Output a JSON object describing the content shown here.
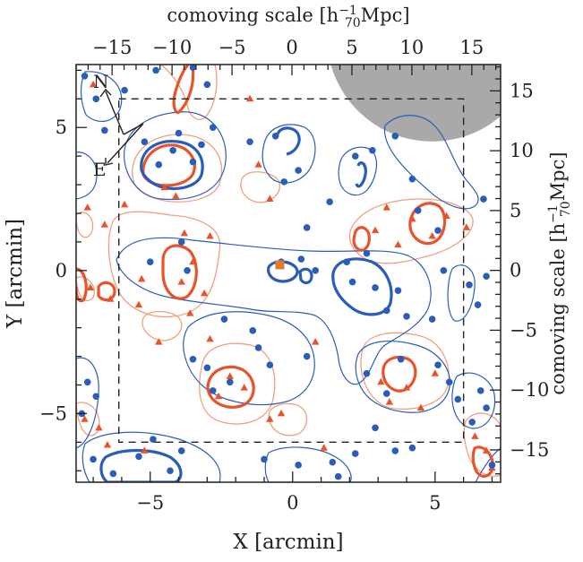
{
  "chart_data": {
    "type": "scatter",
    "title": "",
    "xlabel": "X [arcmin]",
    "ylabel": "Y [arcmin]",
    "x2label": "comoving scale [h",
    "y2label": "comoving scale [h",
    "unit_sub": "70",
    "unit_sup": "−1",
    "unit_tail": "Mpc]",
    "xlim": [
      -7.6,
      7.3
    ],
    "ylim": [
      -7.4,
      7.2
    ],
    "x2lim": [
      -18.0,
      17.4
    ],
    "y2lim": [
      -17.7,
      17.2
    ],
    "xticks": [
      -5,
      0,
      5
    ],
    "yticks": [
      -5,
      0,
      5
    ],
    "x2ticks": [
      -15,
      -10,
      -5,
      0,
      5,
      10,
      15
    ],
    "y2ticks": [
      -15,
      -10,
      -5,
      0,
      5,
      10,
      15
    ],
    "compass": {
      "north_label": "N",
      "east_label": "E"
    },
    "colors": {
      "blue": "#2a5db8",
      "red": "#e8532b",
      "light_red": "#f0a080",
      "mask_grey": "#a9a9a9"
    },
    "masked_region": {
      "center": [
        4.9,
        8.2
      ],
      "radius": 3.7
    },
    "survey_box": {
      "x": [
        -6.1,
        6.0
      ],
      "y": [
        -6.0,
        6.0
      ]
    },
    "central_marker": {
      "x": -0.45,
      "y": 0.2,
      "color": "#e07b2a"
    },
    "series": [
      {
        "marker": "circle",
        "color": "#2a5db8",
        "points": [
          [
            -7.3,
            6.8
          ],
          [
            -6.9,
            6.0
          ],
          [
            -6.6,
            4.9
          ],
          [
            -5.9,
            6.3
          ],
          [
            -5.2,
            4.5
          ],
          [
            -4.7,
            3.7
          ],
          [
            -4.2,
            4.2
          ],
          [
            -4.0,
            4.8
          ],
          [
            -3.5,
            3.8
          ],
          [
            -3.2,
            4.4
          ],
          [
            -3.0,
            6.5
          ],
          [
            -2.8,
            5.0
          ],
          [
            -4.8,
            7.0
          ],
          [
            -3.5,
            7.1
          ],
          [
            -5.0,
            0.3
          ],
          [
            -3.9,
            1.0
          ],
          [
            -3.7,
            0.0
          ],
          [
            -1.5,
            4.5
          ],
          [
            -0.6,
            4.7
          ],
          [
            -0.3,
            3.1
          ],
          [
            0.2,
            3.5
          ],
          [
            0.5,
            1.5
          ],
          [
            -0.4,
            0.3
          ],
          [
            0.3,
            0.4
          ],
          [
            0.8,
            0.0
          ],
          [
            1.3,
            2.4
          ],
          [
            2.2,
            4.0
          ],
          [
            2.8,
            4.2
          ],
          [
            3.6,
            4.7
          ],
          [
            4.2,
            3.2
          ],
          [
            4.4,
            2.1
          ],
          [
            5.1,
            1.4
          ],
          [
            2.6,
            0.6
          ],
          [
            1.9,
            0.3
          ],
          [
            2.1,
            -0.4
          ],
          [
            2.9,
            -0.6
          ],
          [
            3.7,
            -0.7
          ],
          [
            3.3,
            -1.4
          ],
          [
            4.0,
            -1.6
          ],
          [
            4.9,
            -1.7
          ],
          [
            5.3,
            0.0
          ],
          [
            6.2,
            -0.5
          ],
          [
            6.8,
            -0.2
          ],
          [
            6.5,
            -1.2
          ],
          [
            -2.4,
            -1.7
          ],
          [
            -1.4,
            -2.1
          ],
          [
            -0.8,
            -3.3
          ],
          [
            -2.2,
            -3.9
          ],
          [
            -3.0,
            -3.4
          ],
          [
            -2.8,
            -4.2
          ],
          [
            -3.5,
            -3.1
          ],
          [
            2.6,
            -3.6
          ],
          [
            3.3,
            -4.3
          ],
          [
            3.8,
            -3.1
          ],
          [
            5.1,
            -3.3
          ],
          [
            5.5,
            -3.9
          ],
          [
            5.8,
            -4.5
          ],
          [
            6.6,
            -4.2
          ],
          [
            6.8,
            -4.8
          ],
          [
            6.3,
            -5.3
          ],
          [
            2.9,
            -5.5
          ],
          [
            3.6,
            -6.3
          ],
          [
            4.2,
            -6.2
          ],
          [
            -7.2,
            -3.9
          ],
          [
            -6.9,
            -4.4
          ],
          [
            -7.4,
            -5.0
          ],
          [
            -7.0,
            -6.6
          ],
          [
            -6.3,
            -7.1
          ],
          [
            -5.4,
            -6.5
          ],
          [
            -4.9,
            -5.9
          ],
          [
            -4.3,
            -7.0
          ],
          [
            -3.9,
            -6.3
          ],
          [
            -1.0,
            -6.6
          ],
          [
            0.2,
            -6.8
          ],
          [
            1.4,
            -6.7
          ],
          [
            1.6,
            -7.2
          ],
          [
            2.2,
            -6.4
          ],
          [
            -1.2,
            -2.7
          ],
          [
            0.5,
            -3.0
          ],
          [
            7.0,
            -6.8
          ],
          [
            6.7,
            2.5
          ]
        ]
      },
      {
        "marker": "triangle",
        "color": "#e8532b",
        "points": [
          [
            -7.0,
            6.5
          ],
          [
            -7.2,
            2.2
          ],
          [
            -6.6,
            1.6
          ],
          [
            -5.9,
            2.3
          ],
          [
            -4.5,
            2.9
          ],
          [
            -4.1,
            2.6
          ],
          [
            -3.8,
            1.3
          ],
          [
            -2.9,
            1.2
          ],
          [
            -3.5,
            0.3
          ],
          [
            -3.9,
            -0.4
          ],
          [
            -3.1,
            -0.8
          ],
          [
            -5.3,
            -0.3
          ],
          [
            -5.4,
            -1.2
          ],
          [
            -6.4,
            -1.0
          ],
          [
            -7.1,
            -0.6
          ],
          [
            -4.7,
            -2.5
          ],
          [
            -3.6,
            -1.5
          ],
          [
            -2.9,
            -2.4
          ],
          [
            -2.2,
            -3.7
          ],
          [
            -1.7,
            -4.1
          ],
          [
            -2.6,
            -4.4
          ],
          [
            -0.8,
            -5.2
          ],
          [
            -0.4,
            -5.0
          ],
          [
            2.9,
            1.4
          ],
          [
            3.3,
            2.2
          ],
          [
            3.7,
            0.9
          ],
          [
            4.2,
            1.8
          ],
          [
            4.9,
            1.2
          ],
          [
            5.4,
            1.9
          ],
          [
            6.1,
            1.5
          ],
          [
            3.1,
            -3.9
          ],
          [
            3.4,
            -4.6
          ],
          [
            4.0,
            -4.1
          ],
          [
            4.5,
            -4.8
          ],
          [
            5.0,
            -3.6
          ],
          [
            6.4,
            -5.8
          ],
          [
            6.8,
            -6.3
          ],
          [
            7.0,
            -6.9
          ],
          [
            -7.3,
            -5.2
          ],
          [
            -6.8,
            -5.5
          ],
          [
            -6.5,
            -6.1
          ],
          [
            -5.2,
            -6.3
          ],
          [
            0.8,
            -2.5
          ],
          [
            1.1,
            -6.2
          ],
          [
            -1.5,
            6.0
          ],
          [
            -1.2,
            3.7
          ],
          [
            -0.8,
            2.5
          ]
        ]
      }
    ]
  }
}
